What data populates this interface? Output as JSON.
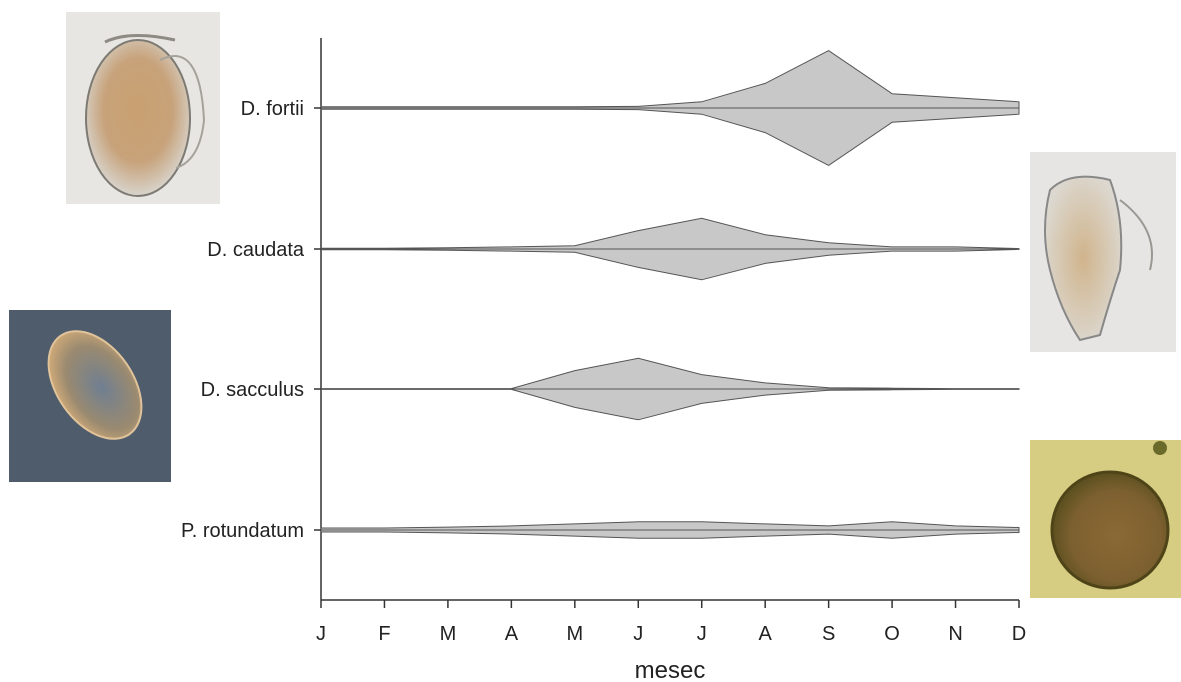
{
  "chart_data": {
    "type": "area",
    "xlabel": "mesec",
    "ylabel": "",
    "title": "",
    "categories": [
      "J",
      "F",
      "M",
      "A",
      "M",
      "J",
      "J",
      "A",
      "S",
      "O",
      "N",
      "D"
    ],
    "series": [
      {
        "name": "D. fortii",
        "values": [
          0.3,
          0.3,
          0.3,
          0.3,
          0.3,
          0.4,
          1.5,
          6,
          14,
          3.5,
          2.5,
          1.5
        ]
      },
      {
        "name": "D. caudata",
        "values": [
          0.2,
          0.2,
          0.3,
          0.5,
          0.8,
          4.5,
          7.5,
          3.5,
          1.5,
          0.5,
          0.5,
          0.1
        ]
      },
      {
        "name": "D. sacculus",
        "values": [
          0.1,
          0.1,
          0.1,
          0.1,
          4.5,
          7.5,
          3.5,
          1.5,
          0.3,
          0.2,
          0.1,
          0.1
        ]
      },
      {
        "name": "P. rotundatum",
        "values": [
          0.5,
          0.5,
          0.7,
          1,
          1.5,
          2,
          2,
          1.5,
          1,
          2,
          1,
          0.6
        ]
      }
    ],
    "grid": false,
    "legend": "none"
  },
  "images": [
    {
      "name": "d-fortii-micrograph",
      "depicts": "D. fortii cell"
    },
    {
      "name": "d-caudata-micrograph",
      "depicts": "D. caudata cell"
    },
    {
      "name": "d-sacculus-micrograph",
      "depicts": "D. sacculus cell"
    },
    {
      "name": "p-rotundatum-micrograph",
      "depicts": "P. rotundatum cell"
    }
  ]
}
